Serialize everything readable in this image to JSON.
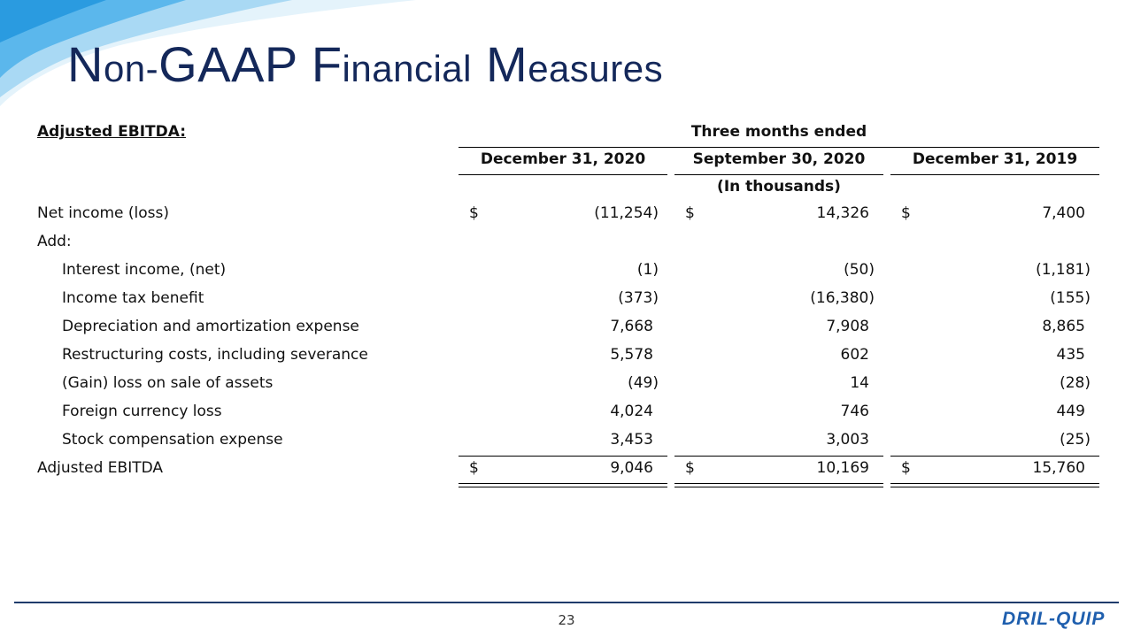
{
  "title": {
    "first": "N",
    "first_rest": "on-",
    "gaap": "GAAP",
    "second": "F",
    "second_rest": "inancial",
    "third": "M",
    "third_rest": "easures"
  },
  "section_label": "Adjusted EBITDA:",
  "period_header": "Three months ended",
  "columns": [
    "December 31, 2020",
    "September 30, 2020",
    "December 31, 2019"
  ],
  "units_label": "(In thousands)",
  "rows": [
    {
      "label": "Net income (loss)",
      "indent": false,
      "currency": "$",
      "values": [
        "(11,254)",
        "14,326",
        "7,400"
      ]
    },
    {
      "label": "Add:",
      "indent": false,
      "currency": "",
      "values": [
        "",
        "",
        ""
      ]
    },
    {
      "label": "Interest income, (net)",
      "indent": true,
      "currency": "",
      "values": [
        "(1)",
        "(50)",
        "(1,181)"
      ]
    },
    {
      "label": "Income tax benefit",
      "indent": true,
      "currency": "",
      "values": [
        "(373)",
        "(16,380)",
        "(155)"
      ]
    },
    {
      "label": "Depreciation and amortization expense",
      "indent": true,
      "currency": "",
      "values": [
        "7,668",
        "7,908",
        "8,865"
      ]
    },
    {
      "label": "Restructuring costs, including severance",
      "indent": true,
      "currency": "",
      "values": [
        "5,578",
        "602",
        "435"
      ]
    },
    {
      "label": "(Gain) loss on sale of assets",
      "indent": true,
      "currency": "",
      "values": [
        "(49)",
        "14",
        "(28)"
      ]
    },
    {
      "label": "Foreign currency loss",
      "indent": true,
      "currency": "",
      "values": [
        "4,024",
        "746",
        "449"
      ]
    },
    {
      "label": "Stock compensation expense",
      "indent": true,
      "currency": "",
      "values": [
        "3,453",
        "3,003",
        "(25)"
      ]
    },
    {
      "label": "Adjusted EBITDA",
      "indent": false,
      "currency": "$",
      "values": [
        "9,046",
        "10,169",
        "15,760"
      ]
    }
  ],
  "page_number": "23",
  "logo_text": "DRIL-QUIP",
  "colors": {
    "title": "#14285a",
    "swoosh_light": "#cfe8f7",
    "swoosh_mid": "#7cc3ec",
    "swoosh_dark": "#2a9be0",
    "footer_line": "#1f3b6b",
    "logo": "#1f5fae"
  }
}
